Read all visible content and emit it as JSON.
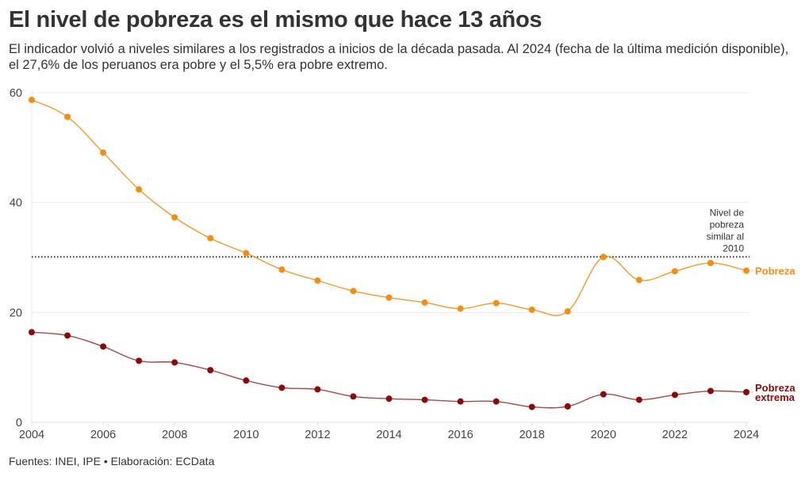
{
  "header": {
    "title": "El nivel de pobreza es el mismo que hace 13 años",
    "subtitle": "El indicador volvió a niveles similares a los registrados a inicios de la década pasada. Al 2024 (fecha de la última medición disponible), el 27,6% de los peruanos era pobre y el 5,5% era pobre extremo."
  },
  "footer": {
    "source": "Fuentes: INEI, IPE • Elaboración: ECData"
  },
  "chart_data": {
    "type": "line",
    "title": "El nivel de pobreza es el mismo que hace 13 años",
    "xlabel": "",
    "ylabel": "",
    "x": [
      2004,
      2005,
      2006,
      2007,
      2008,
      2009,
      2010,
      2011,
      2012,
      2013,
      2014,
      2015,
      2016,
      2017,
      2018,
      2019,
      2020,
      2021,
      2022,
      2023,
      2024
    ],
    "xlim": [
      2004,
      2024
    ],
    "ylim": [
      0,
      60
    ],
    "x_ticks": [
      2004,
      2006,
      2008,
      2010,
      2012,
      2014,
      2016,
      2018,
      2020,
      2022,
      2024
    ],
    "y_ticks": [
      0,
      20,
      40,
      60
    ],
    "grid": true,
    "legend": "inline-right",
    "series": [
      {
        "name": "Pobreza",
        "color": "#f28e13",
        "values": [
          58.7,
          55.6,
          49.1,
          42.4,
          37.3,
          33.5,
          30.8,
          27.8,
          25.8,
          23.9,
          22.7,
          21.8,
          20.7,
          21.7,
          20.5,
          20.2,
          30.1,
          25.9,
          27.5,
          29.0,
          27.6
        ]
      },
      {
        "name": "Pobreza extrema",
        "label_lines": [
          "Pobreza",
          "extrema"
        ],
        "color": "#8b0a0a",
        "values": [
          16.4,
          15.8,
          13.8,
          11.2,
          10.9,
          9.5,
          7.6,
          6.3,
          6.0,
          4.7,
          4.3,
          4.1,
          3.8,
          3.8,
          2.8,
          2.9,
          5.1,
          4.1,
          5.0,
          5.7,
          5.5
        ]
      }
    ],
    "reference_line": {
      "value": 30.1,
      "style": "dotted",
      "color": "#333333",
      "annotation": [
        "Nivel de",
        "pobreza",
        "similar al",
        "2010"
      ]
    }
  }
}
